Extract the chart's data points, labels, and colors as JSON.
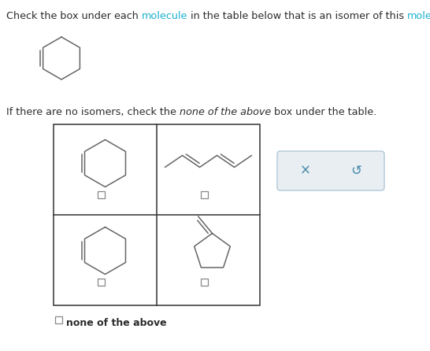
{
  "bg": "#ffffff",
  "title_parts": [
    [
      "Check the box under each ",
      "#2c2c2c"
    ],
    [
      "molecule",
      "#1ab0d0"
    ],
    [
      " in the table below that is an isomer of this ",
      "#2c2c2c"
    ],
    [
      "molecule",
      "#1ab0d0"
    ],
    [
      ":",
      "#2c2c2c"
    ]
  ],
  "subtitle_normal1": "If there are no isomers, check the ",
  "subtitle_italic": "none of the above",
  "subtitle_normal2": " box under the table.",
  "none_label": "none of the above",
  "text_color": "#2c2c2c",
  "mol_color": "#666666",
  "table_line_color": "#333333",
  "box_bg": "#e8eef2",
  "box_border": "#aabbcc",
  "box_text": "#4488aa"
}
